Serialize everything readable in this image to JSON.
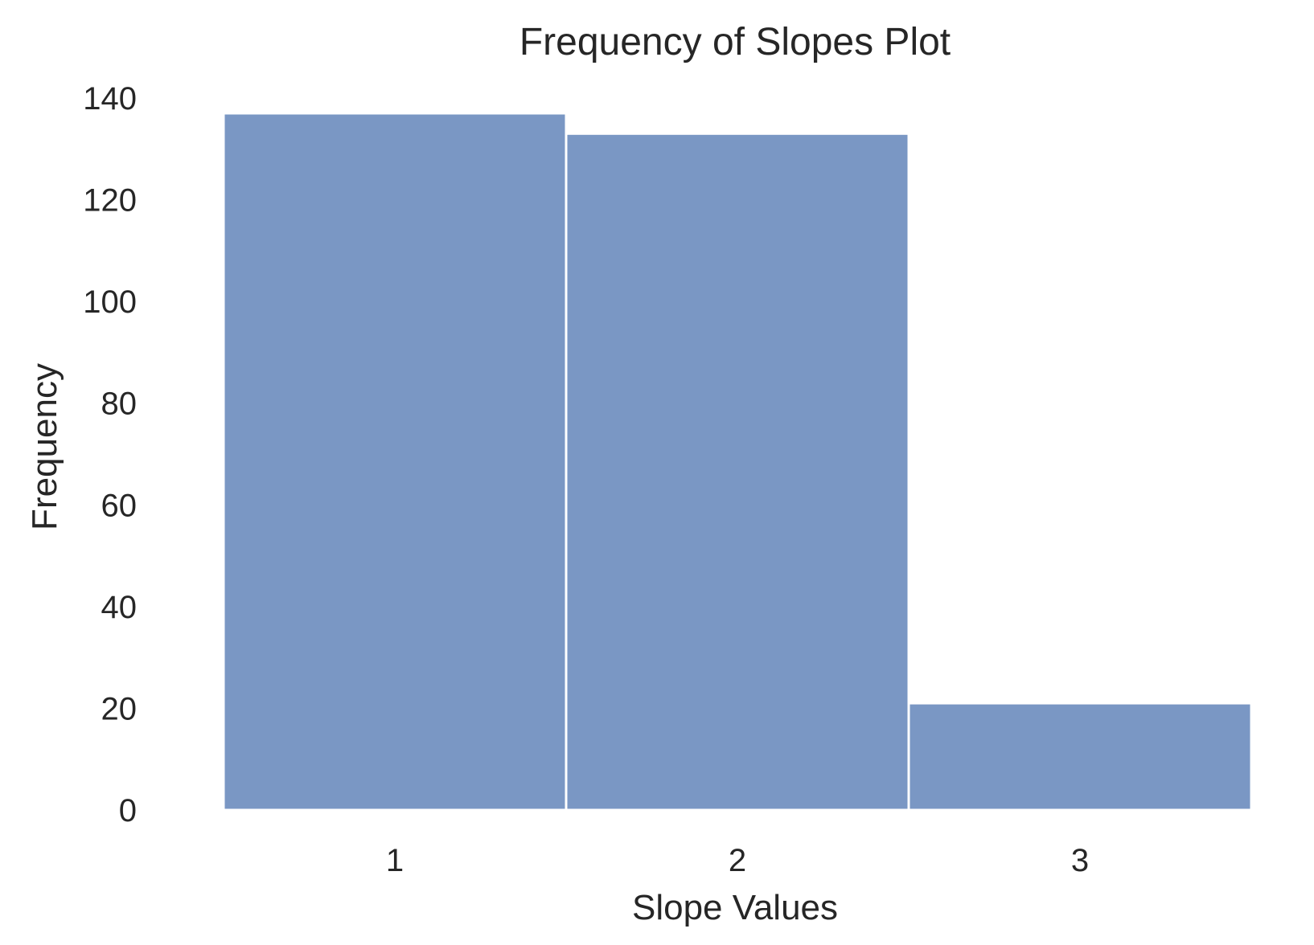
{
  "chart_data": {
    "type": "bar",
    "title": "Frequency of Slopes Plot",
    "xlabel": "Slope Values",
    "ylabel": "Frequency",
    "categories": [
      "1",
      "2",
      "3"
    ],
    "values": [
      137,
      133,
      21
    ],
    "ylim": [
      0,
      140
    ],
    "yticks": [
      "0",
      "20",
      "40",
      "60",
      "80",
      "100",
      "120",
      "140"
    ],
    "grid": false,
    "legend": false,
    "bar_color": "#7a97c4",
    "background": "#ffffff"
  }
}
